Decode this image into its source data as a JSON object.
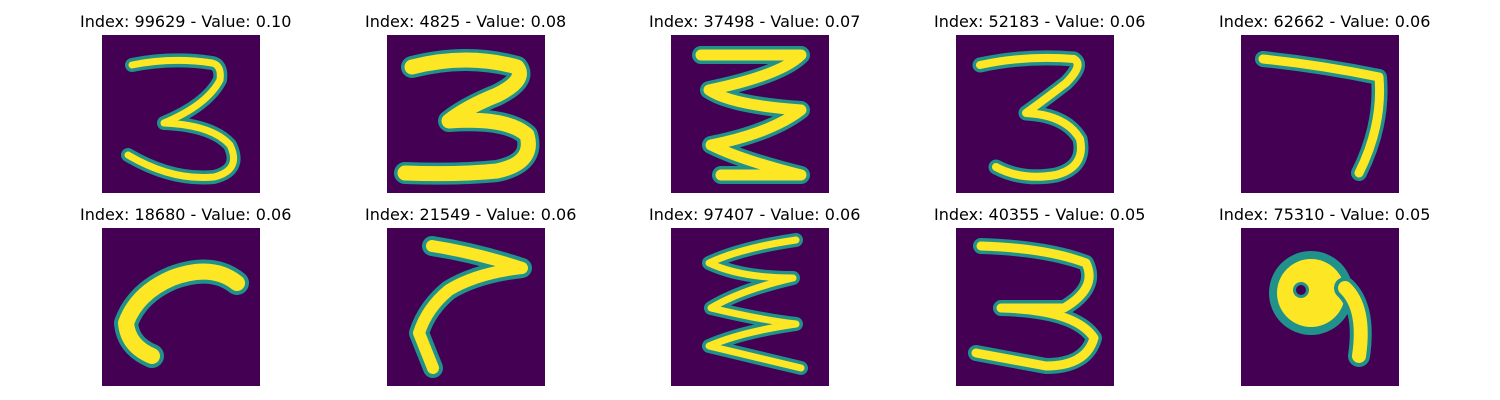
{
  "figure": {
    "colors": {
      "background_low": "#440154",
      "edge_mid": "#21918c",
      "edge_teal": "#2a9d8c",
      "high": "#fde725",
      "mid_green": "#5ec962"
    },
    "panels": [
      {
        "title": "Index: 99629 - Value: 0.10",
        "shape_icon": "digit-3-sketch-icon"
      },
      {
        "title": "Index: 4825 - Value: 0.08",
        "shape_icon": "digit-3-bold-icon"
      },
      {
        "title": "Index: 37498 - Value: 0.07",
        "shape_icon": "zigzag-sketch-icon"
      },
      {
        "title": "Index: 52183 - Value: 0.06",
        "shape_icon": "digit-3-sketch-icon"
      },
      {
        "title": "Index: 62662 - Value: 0.06",
        "shape_icon": "digit-7-sketch-icon"
      },
      {
        "title": "Index: 18680 - Value: 0.06",
        "shape_icon": "hook-sketch-icon"
      },
      {
        "title": "Index: 21549 - Value: 0.06",
        "shape_icon": "arrow-hook-sketch-icon"
      },
      {
        "title": "Index: 97407 - Value: 0.06",
        "shape_icon": "zigzag-sketch-icon"
      },
      {
        "title": "Index: 40355 - Value: 0.05",
        "shape_icon": "digit-3-sketch-icon"
      },
      {
        "title": "Index: 75310 - Value: 0.05",
        "shape_icon": "digit-9-blob-icon"
      }
    ]
  }
}
